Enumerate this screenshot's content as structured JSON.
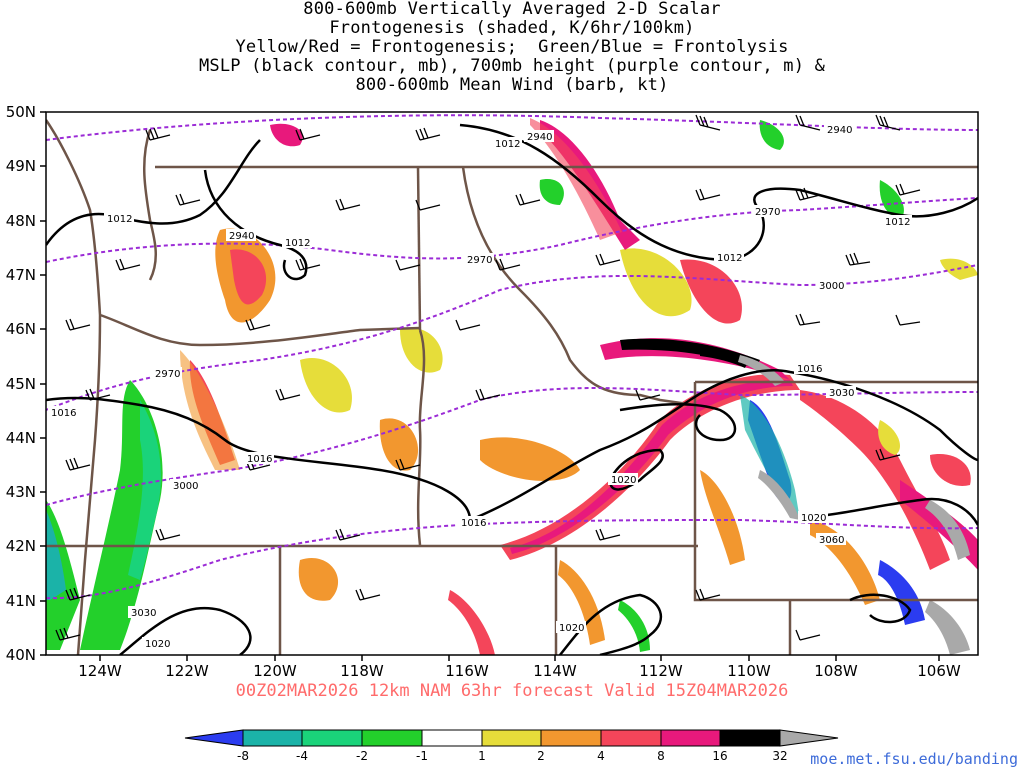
{
  "title": {
    "lines": [
      "800-600mb Vertically Averaged 2-D Scalar",
      "Frontogenesis (shaded, K/6hr/100km)",
      "Yellow/Red = Frontogenesis;  Green/Blue = Frontolysis",
      "MSLP (black contour, mb), 700mb height (purple contour, m) &",
      "800-600mb Mean Wind (barb, kt)"
    ]
  },
  "forecast_label": "00Z02MAR2026 12km NAM 63hr forecast Valid 15Z04MAR2026",
  "credit": "moe.met.fsu.edu/banding",
  "axes": {
    "lat_labels": [
      "50N",
      "49N",
      "48N",
      "47N",
      "46N",
      "45N",
      "44N",
      "43N",
      "42N",
      "41N",
      "40N"
    ],
    "lon_labels": [
      "124W",
      "122W",
      "120W",
      "118W",
      "116W",
      "114W",
      "112W",
      "110W",
      "108W",
      "106W"
    ]
  },
  "contour_labels": {
    "mslp": [
      "1012",
      "1012",
      "1012",
      "1012",
      "1012",
      "1016",
      "1016",
      "1016",
      "1016",
      "1020",
      "1020",
      "1020",
      "1020"
    ],
    "height": [
      "2940",
      "2940",
      "2940",
      "2970",
      "2970",
      "2970",
      "3000",
      "3000",
      "3030",
      "3030",
      "3060"
    ]
  },
  "colorbar": {
    "ticks": [
      "-8",
      "-4",
      "-2",
      "-1",
      "1",
      "2",
      "4",
      "8",
      "16",
      "32"
    ],
    "colors": [
      "#2b3cf0",
      "#1bb3a8",
      "#1ad37a",
      "#23d02b",
      "#ffffff",
      "#e6dd3a",
      "#f2972f",
      "#f4455a",
      "#e8197c",
      "#000000",
      "#a9a9a9"
    ]
  },
  "colors": {
    "state_borders": "#6e5548",
    "mslp_contour": "#000000",
    "height_contour": "#9b2bd6",
    "barbs": "#000000"
  }
}
